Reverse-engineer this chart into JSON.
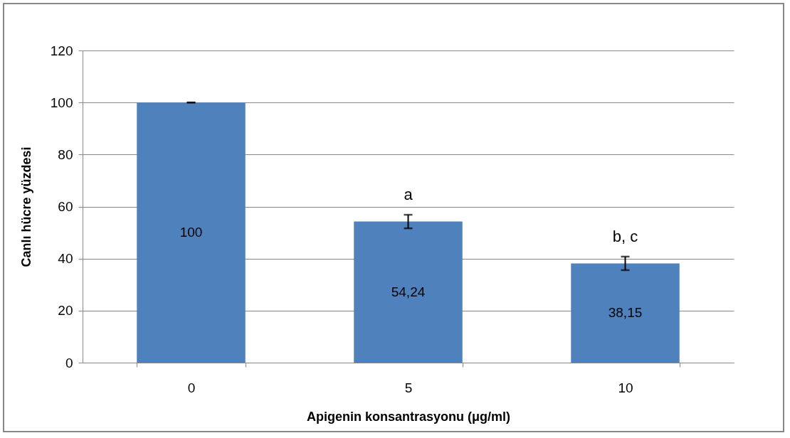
{
  "chart_data": {
    "type": "bar",
    "xlabel": "Apigenin konsantrasyonu (μg/ml)",
    "ylabel": "Canlı hücre yüzdesi",
    "categories": [
      "0",
      "5",
      "10"
    ],
    "values": [
      100,
      54.24,
      38.15
    ],
    "value_labels": [
      "100",
      "54,24",
      "38,15"
    ],
    "errors": [
      0,
      2.6,
      2.6
    ],
    "color": "#4f81bd",
    "ylim": [
      0,
      120
    ],
    "yticks": [
      0,
      20,
      40,
      60,
      80,
      100,
      120
    ],
    "grid": "y",
    "annotations": [
      "a",
      "b, c"
    ]
  }
}
